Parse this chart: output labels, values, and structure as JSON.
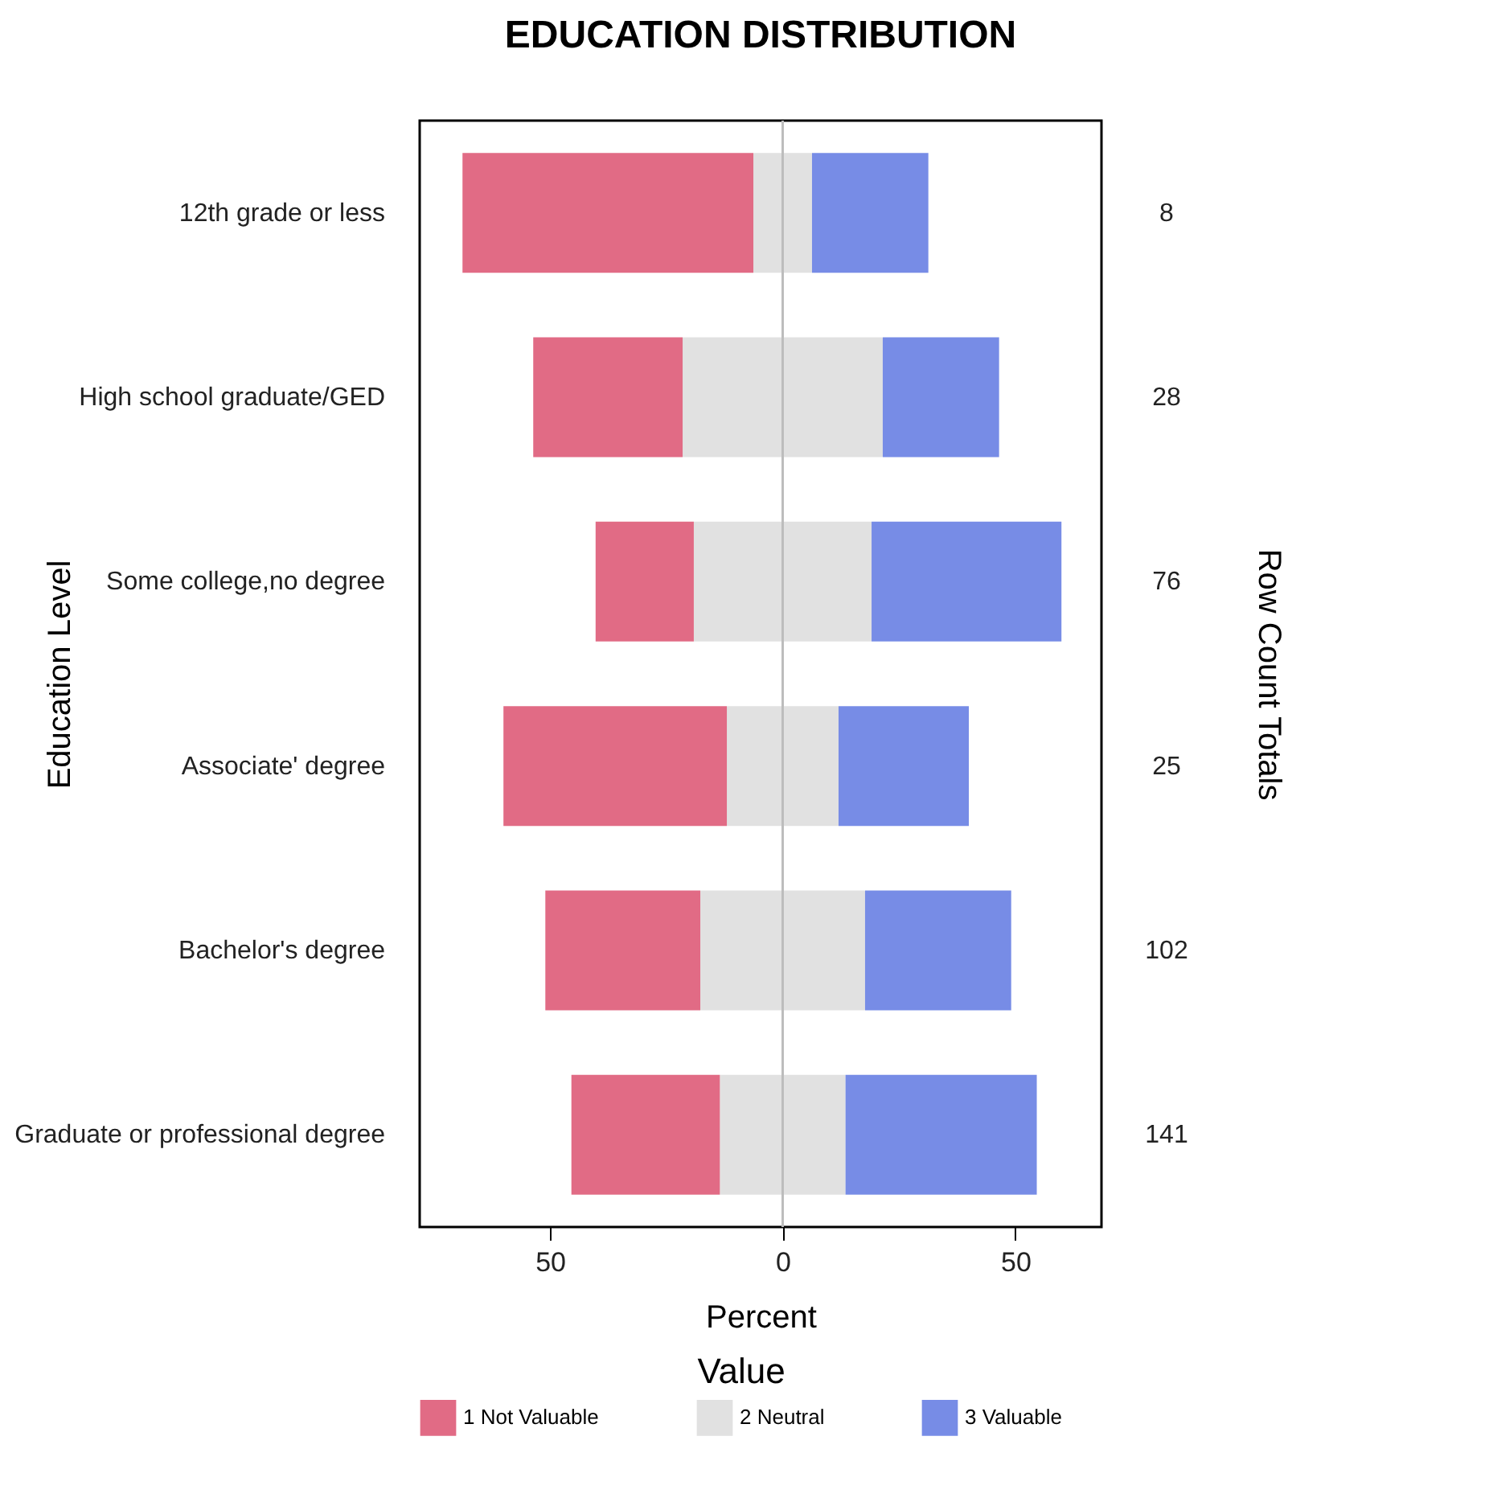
{
  "chart_data": {
    "type": "bar",
    "orientation": "horizontal",
    "stacked": true,
    "title": "EDUCATION DISTRIBUTION",
    "xlabel": "Percent",
    "ylabel": "Education Level",
    "y2label": "Row Count Totals",
    "legend_title": "Value",
    "legend": "bottom",
    "grid": false,
    "categories": [
      "12th grade or less",
      "High school graduate/GED",
      "Some college,no degree",
      "Associate' degree",
      "Bachelor's degree",
      "Graduate or professional degree"
    ],
    "series": [
      {
        "color": "#e1e1e1",
        "values": [
          -6.3,
          -21.5,
          -19.1,
          -12,
          -17.7,
          -13.5
        ]
      },
      {
        "name": "1 Not Valuable",
        "color": "#e16b85",
        "values": [
          -62.5,
          -32.1,
          -21.1,
          -48,
          -33.3,
          -31.9
        ]
      },
      {
        "name": "2 Neutral",
        "color": "#e1e1e1",
        "values": [
          6.3,
          21.5,
          19.1,
          12,
          17.7,
          13.5
        ]
      },
      {
        "name": "3 Valuable",
        "color": "#778ce6",
        "values": [
          25,
          25,
          40.8,
          28,
          31.4,
          41.1
        ]
      }
    ],
    "annotations": [
      "8",
      "28",
      "76",
      "25",
      "102",
      "141"
    ],
    "xlim": [
      -78,
      68.5
    ],
    "xticks": [
      {
        "value": -50,
        "label": "50"
      },
      0,
      50
    ],
    "ref_lines": [
      {
        "axis": "x",
        "value": 0,
        "color": "#bdbdbd"
      }
    ]
  }
}
